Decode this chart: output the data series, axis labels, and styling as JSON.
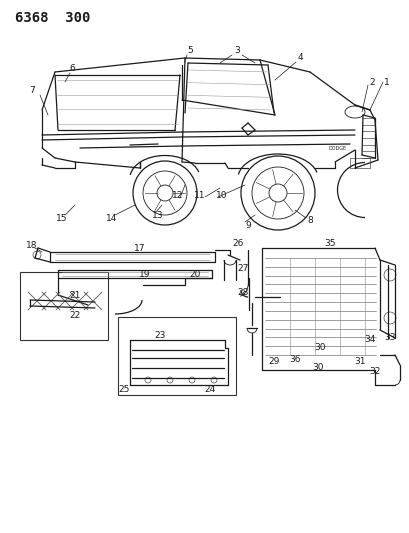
{
  "title": "6368 300",
  "bg_color": "#ffffff",
  "line_color": "#1a1a1a",
  "label_color": "#1a1a1a",
  "label_fontsize": 6.0,
  "figure_width": 4.1,
  "figure_height": 5.33,
  "dpi": 100
}
